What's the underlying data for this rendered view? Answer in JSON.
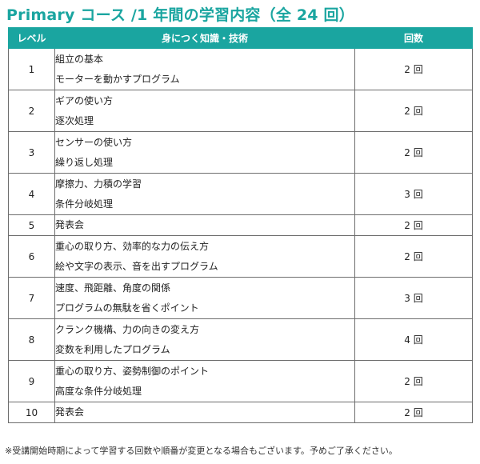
{
  "title": "Primary コース /1 年間の学習内容（全 24 回）",
  "table": {
    "headers": {
      "level": "レベル",
      "skills": "身につく知識・技術",
      "count": "回数"
    },
    "rows": [
      {
        "level": "1",
        "lines": [
          "組立の基本",
          "モーターを動かすプログラム"
        ],
        "count": "2 回"
      },
      {
        "level": "2",
        "lines": [
          "ギアの使い方",
          "逐次処理"
        ],
        "count": "2 回"
      },
      {
        "level": "3",
        "lines": [
          "センサーの使い方",
          "繰り返し処理"
        ],
        "count": "2 回"
      },
      {
        "level": "4",
        "lines": [
          "摩擦力、力積の学習",
          "条件分岐処理"
        ],
        "count": "3 回"
      },
      {
        "level": "5",
        "lines": [
          "発表会"
        ],
        "count": "2 回"
      },
      {
        "level": "6",
        "lines": [
          "重心の取り方、効率的な力の伝え方",
          "絵や文字の表示、音を出すプログラム"
        ],
        "count": "2 回"
      },
      {
        "level": "7",
        "lines": [
          "速度、飛距離、角度の関係",
          "プログラムの無駄を省くポイント"
        ],
        "count": "3 回"
      },
      {
        "level": "8",
        "lines": [
          "クランク機構、力の向きの変え方",
          "変数を利用したプログラム"
        ],
        "count": "4 回"
      },
      {
        "level": "9",
        "lines": [
          "重心の取り方、姿勢制御のポイント",
          "高度な条件分岐処理"
        ],
        "count": "2 回"
      },
      {
        "level": "10",
        "lines": [
          "発表会"
        ],
        "count": "2 回"
      }
    ]
  },
  "note": "※受講開始時期によって学習する回数や順番が変更となる場合もございます。予めご了承ください。",
  "colors": {
    "accent": "#1aa5a0",
    "border": "#6d6d6d"
  }
}
